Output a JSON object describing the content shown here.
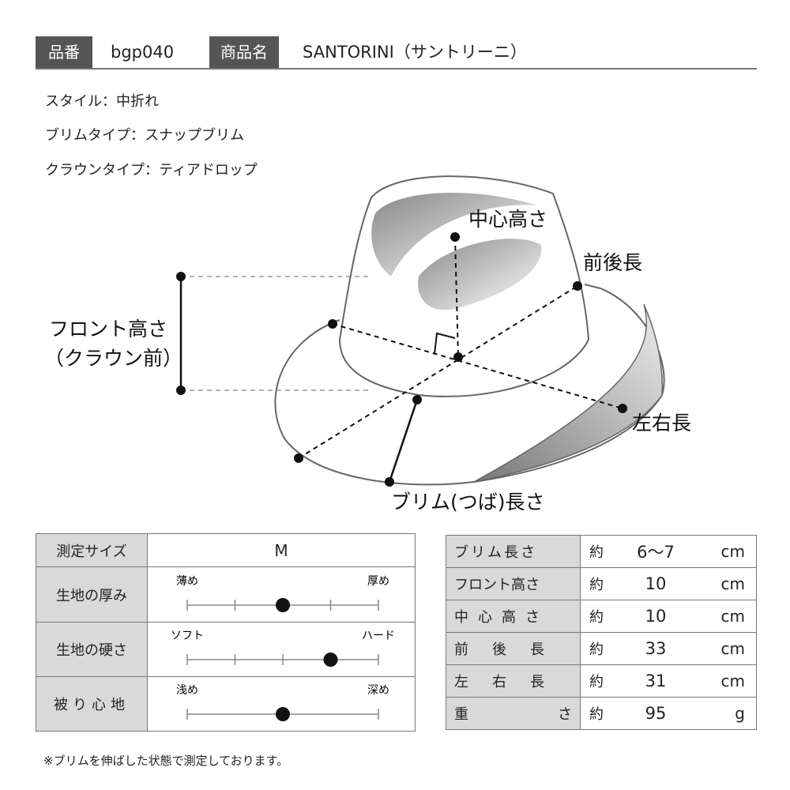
{
  "header": {
    "code_label": "品番",
    "code": "bgp040",
    "name_label": "商品名",
    "name": "SANTORINI（サントリーニ）"
  },
  "specs": [
    "スタイル：中折れ",
    "ブリムタイプ：スナップブリム",
    "クラウンタイプ：ティアドロップ"
  ],
  "diagram": {
    "center_height": "中心高さ",
    "front_back": "前後長",
    "front_height": [
      "フロント高さ",
      "（クラウン前）"
    ],
    "left_right": "左右長",
    "brim_length": "ブリム(つば)長さ"
  },
  "feel_table": {
    "size_label": "測定サイズ",
    "size": "M",
    "rows": [
      {
        "label": "生地の厚み",
        "low": "薄め",
        "high": "厚め",
        "ticks": [
          1,
          2,
          3,
          4,
          5
        ],
        "value": 3
      },
      {
        "label": "生地の硬さ",
        "low": "ソフト",
        "high": "ハード",
        "ticks": [
          1,
          2,
          3,
          4,
          5
        ],
        "value": 4
      },
      {
        "label": "被り心地",
        "low": "浅め",
        "high": "深め",
        "ticks": [
          1,
          5
        ],
        "value": 3
      }
    ]
  },
  "size_table": {
    "rows": [
      [
        "ブリム長さ",
        "約",
        "6〜7",
        "cm"
      ],
      [
        "フロント高さ",
        "約",
        "10",
        "cm"
      ],
      [
        "中心高さ",
        "約",
        "10",
        "cm"
      ],
      [
        "前後長",
        "約",
        "33",
        "cm"
      ],
      [
        "左右長",
        "約",
        "31",
        "cm"
      ],
      [
        "重さ",
        "約",
        "95",
        "g"
      ]
    ]
  },
  "footnote": "※ブリムを伸ばした状態で測定しております。"
}
